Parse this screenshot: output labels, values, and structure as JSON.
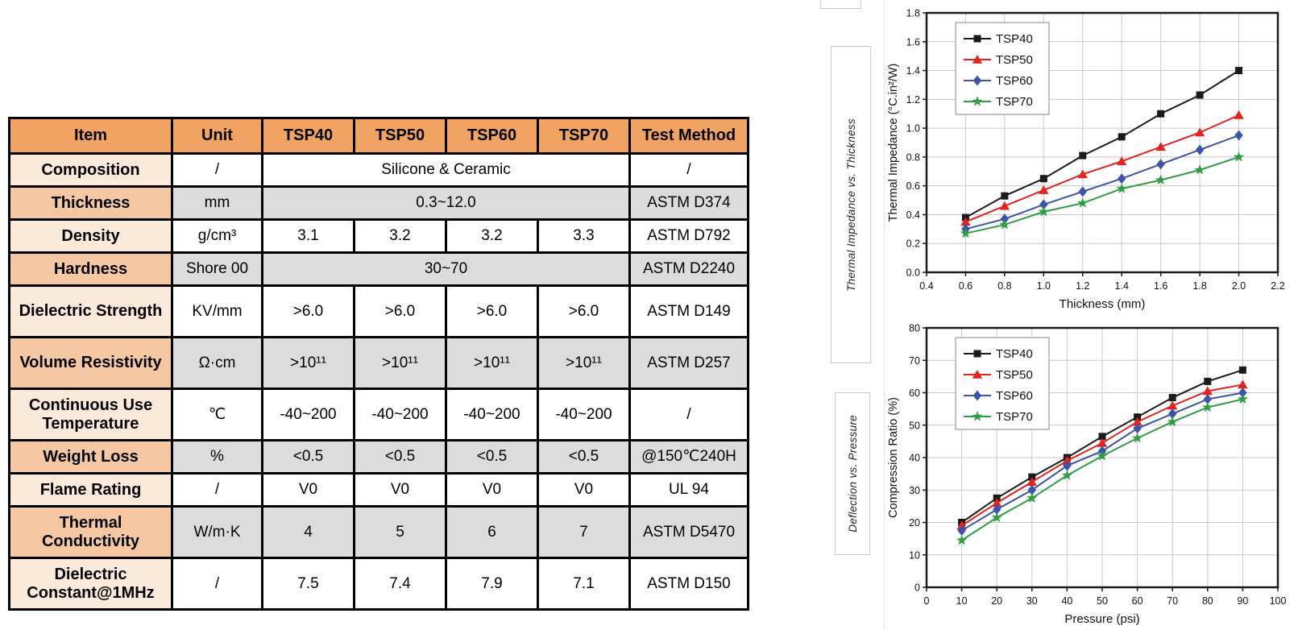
{
  "table": {
    "headers": [
      "Item",
      "Unit",
      "TSP40",
      "TSP50",
      "TSP60",
      "TSP70",
      "Test Method"
    ],
    "rows": [
      {
        "item": "Composition",
        "unit": "/",
        "span": true,
        "values": [
          "Silicone & Ceramic"
        ],
        "method": "/"
      },
      {
        "item": "Thickness",
        "unit": "mm",
        "span": true,
        "values": [
          "0.3~12.0"
        ],
        "method": "ASTM D374"
      },
      {
        "item": "Density",
        "unit": "g/cm³",
        "span": false,
        "values": [
          "3.1",
          "3.2",
          "3.2",
          "3.3"
        ],
        "method": "ASTM D792"
      },
      {
        "item": "Hardness",
        "unit": "Shore 00",
        "span": true,
        "values": [
          "30~70"
        ],
        "method": "ASTM D2240"
      },
      {
        "item": "Dielectric Strength",
        "unit": "KV/mm",
        "span": false,
        "values": [
          ">6.0",
          ">6.0",
          ">6.0",
          ">6.0"
        ],
        "method": "ASTM D149"
      },
      {
        "item": "Volume Resistivity",
        "unit": "Ω·cm",
        "span": false,
        "values": [
          ">10¹¹",
          ">10¹¹",
          ">10¹¹",
          ">10¹¹"
        ],
        "method": "ASTM D257"
      },
      {
        "item": "Continuous Use Temperature",
        "unit": "℃",
        "span": false,
        "values": [
          "-40~200",
          "-40~200",
          "-40~200",
          "-40~200"
        ],
        "method": "/"
      },
      {
        "item": "Weight Loss",
        "unit": "%",
        "span": false,
        "values": [
          "<0.5",
          "<0.5",
          "<0.5",
          "<0.5"
        ],
        "method": "@150℃240H"
      },
      {
        "item": "Flame Rating",
        "unit": "/",
        "span": false,
        "values": [
          "V0",
          "V0",
          "V0",
          "V0"
        ],
        "method": "UL 94"
      },
      {
        "item": "Thermal Conductivity",
        "unit": "W/m·K",
        "span": false,
        "values": [
          "4",
          "5",
          "6",
          "7"
        ],
        "method": "ASTM D5470"
      },
      {
        "item": "Dielectric Constant@1MHz",
        "unit": "/",
        "span": false,
        "values": [
          "7.5",
          "7.4",
          "7.9",
          "7.1"
        ],
        "method": "ASTM D150"
      }
    ],
    "colors": {
      "header_bg": "#f1a363",
      "item_row_light": "#fbe9da",
      "item_row_medium": "#f5c7a2",
      "cell_gray": "#dcdcdc",
      "cell_white": "#ffffff",
      "border": "#000000"
    }
  },
  "chart_data": [
    {
      "type": "line",
      "side_label": "Thermal Impedance vs. Thickness",
      "xlabel": "Thickness (mm)",
      "ylabel": "Thermal Impedance (°C.in²/W)",
      "xlim": [
        0.4,
        2.2
      ],
      "xstep": 0.2,
      "xdec": 1,
      "ylim": [
        0.0,
        1.8
      ],
      "ystep": 0.2,
      "ydec": 1,
      "grid": true,
      "legend_position": "top-left",
      "x": [
        0.6,
        0.8,
        1.0,
        1.2,
        1.4,
        1.6,
        1.8,
        2.0
      ],
      "series": [
        {
          "name": "TSP40",
          "marker": "square",
          "color": "#1a1a1a",
          "values": [
            0.38,
            0.53,
            0.65,
            0.81,
            0.94,
            1.1,
            1.23,
            1.4
          ]
        },
        {
          "name": "TSP50",
          "marker": "triangle",
          "color": "#e2231f",
          "values": [
            0.35,
            0.46,
            0.57,
            0.68,
            0.77,
            0.87,
            0.97,
            1.09
          ]
        },
        {
          "name": "TSP60",
          "marker": "diamond",
          "color": "#3b54a5",
          "values": [
            0.3,
            0.37,
            0.47,
            0.56,
            0.65,
            0.75,
            0.85,
            0.95
          ]
        },
        {
          "name": "TSP70",
          "marker": "star",
          "color": "#2e9d44",
          "values": [
            0.27,
            0.33,
            0.42,
            0.48,
            0.58,
            0.64,
            0.71,
            0.8
          ]
        }
      ]
    },
    {
      "type": "line",
      "side_label": "Deflection vs. Pressure",
      "xlabel": "Pressure (psi)",
      "ylabel": "Compression Ratio (%)",
      "xlim": [
        0,
        100
      ],
      "xstep": 10,
      "xdec": 0,
      "ylim": [
        0,
        80
      ],
      "ystep": 10,
      "ydec": 0,
      "grid": true,
      "legend_position": "top-left",
      "x": [
        10,
        20,
        30,
        40,
        50,
        60,
        70,
        80,
        90
      ],
      "series": [
        {
          "name": "TSP40",
          "marker": "square",
          "color": "#1a1a1a",
          "values": [
            20,
            27.5,
            34,
            40,
            46.5,
            52.5,
            58.5,
            63.5,
            67
          ]
        },
        {
          "name": "TSP50",
          "marker": "triangle",
          "color": "#e2231f",
          "values": [
            19,
            26,
            32.5,
            39,
            44.5,
            51,
            56,
            60.5,
            62.5
          ]
        },
        {
          "name": "TSP60",
          "marker": "diamond",
          "color": "#3b54a5",
          "values": [
            17.5,
            24,
            30,
            37.5,
            42,
            49,
            53.5,
            58,
            60
          ]
        },
        {
          "name": "TSP70",
          "marker": "star",
          "color": "#2e9d44",
          "values": [
            14.5,
            21.5,
            27.5,
            34.5,
            40.5,
            46,
            51,
            55.5,
            58
          ]
        }
      ]
    }
  ]
}
